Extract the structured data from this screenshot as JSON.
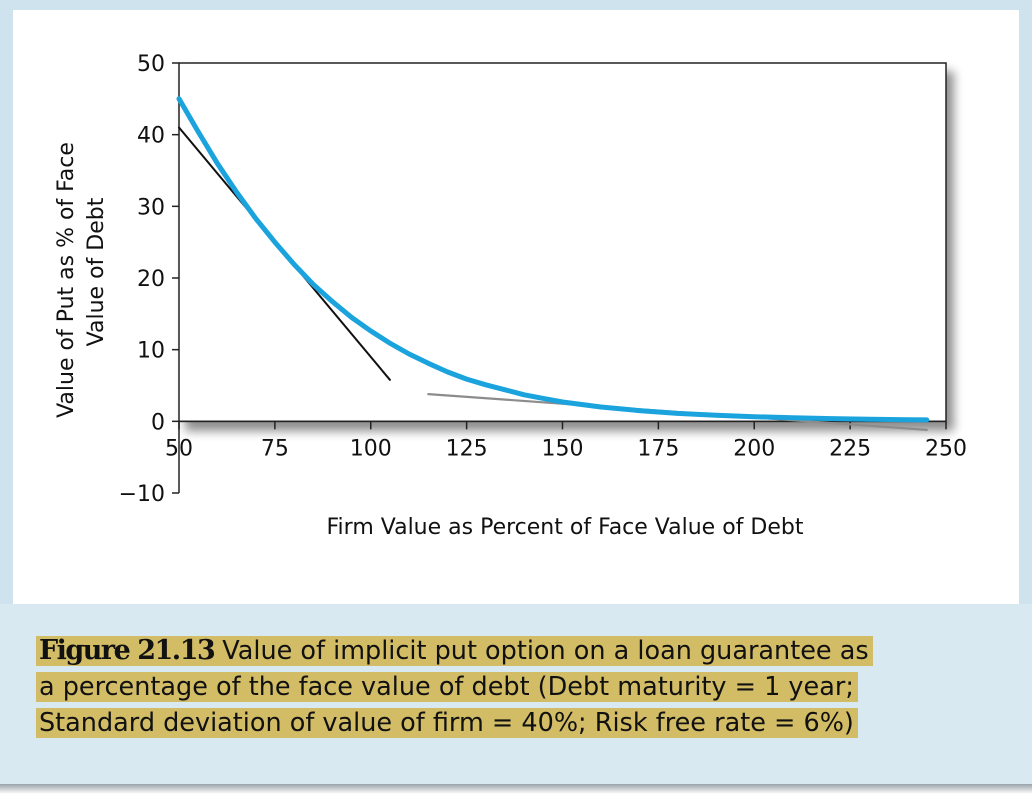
{
  "caption": {
    "figure_label": "Figure 21.13",
    "line1": "Value of implicit put option on a loan guarantee as",
    "line2": "a percentage of the face value of debt (Debt maturity = 1 year;",
    "line3": "Standard deviation of value of firm = 40%; Risk free rate = 6%)"
  },
  "colors": {
    "frame": "#cfe3ee",
    "highlight": "#d2bd66",
    "put_curve": "#1aa3dc",
    "tangent_line": "#111111",
    "linear_approx": "#8c8c8c"
  },
  "chart_data": {
    "type": "line",
    "title": "",
    "xlabel": "Firm Value as Percent of Face Value of Debt",
    "ylabel_lines": [
      "Value of Put as % of Face",
      "Value of Debt"
    ],
    "xlim": [
      50,
      250
    ],
    "ylim": [
      -10,
      50
    ],
    "x_ticks": [
      "50",
      "75",
      "100",
      "125",
      "150",
      "175",
      "200",
      "225",
      "250"
    ],
    "y_ticks": [
      "50",
      "40",
      "30",
      "20",
      "10",
      "0",
      "−10"
    ],
    "x_tick_values": [
      50,
      75,
      100,
      125,
      150,
      175,
      200,
      225,
      250
    ],
    "y_tick_values": [
      50,
      40,
      30,
      20,
      10,
      0,
      -10
    ],
    "grid": false,
    "legend": "none",
    "series": [
      {
        "role": "put_curve",
        "x": [
          50,
          55,
          60,
          65,
          70,
          75,
          80,
          85,
          90,
          95,
          100,
          105,
          110,
          115,
          120,
          125,
          130,
          135,
          140,
          145,
          150,
          160,
          170,
          180,
          190,
          200,
          210,
          220,
          230,
          240,
          245
        ],
        "y": [
          45,
          40.4,
          36,
          32,
          28.3,
          25,
          21.9,
          19.1,
          16.7,
          14.5,
          12.6,
          10.9,
          9.4,
          8.1,
          6.9,
          5.9,
          5.1,
          4.4,
          3.7,
          3.2,
          2.7,
          2.0,
          1.5,
          1.1,
          0.85,
          0.65,
          0.5,
          0.38,
          0.3,
          0.22,
          0.2
        ]
      },
      {
        "role": "tangent_line",
        "x": [
          50,
          105
        ],
        "y": [
          41,
          5.8
        ]
      },
      {
        "role": "linear_approx",
        "x": [
          115,
          245
        ],
        "y": [
          3.8,
          -1.2
        ]
      }
    ]
  }
}
